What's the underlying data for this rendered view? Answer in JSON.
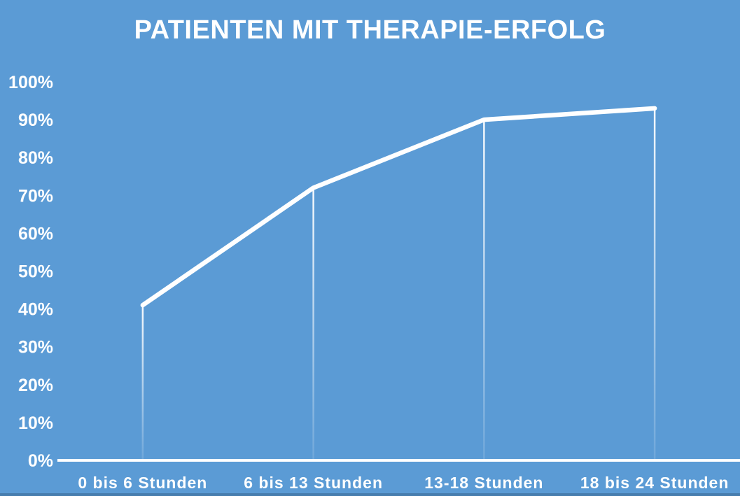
{
  "page": {
    "background_color": "#5b9bd5",
    "text_color": "#ffffff"
  },
  "chart_data": {
    "type": "line",
    "title": "PATIENTEN MIT THERAPIE-ERFOLG",
    "categories": [
      "0 bis 6 Stunden",
      "6 bis 13 Stunden",
      "13-18 Stunden",
      "18 bis 24 Stunden"
    ],
    "series": [
      {
        "name": "Patienten mit Therapie-Erfolg",
        "values": [
          41,
          72,
          90,
          93
        ]
      }
    ],
    "unit": "%",
    "ylim": [
      0,
      100
    ],
    "y_tick_step": 10,
    "y_tick_labels": [
      "0%",
      "10%",
      "20%",
      "30%",
      "40%",
      "50%",
      "60%",
      "70%",
      "80%",
      "90%",
      "100%"
    ],
    "xlabel": "",
    "ylabel": "",
    "grid": false,
    "legend_position": "none",
    "drop_lines_to_axis": true,
    "line_color": "#ffffff",
    "axis_color": "#ffffff",
    "tick_label_color": "#ffffff"
  }
}
